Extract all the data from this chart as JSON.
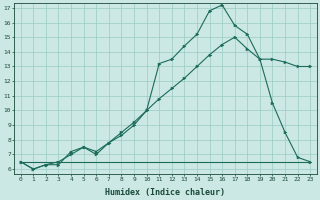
{
  "xlabel": "Humidex (Indice chaleur)",
  "bg_color": "#cce8e4",
  "grid_color": "#99ccc4",
  "line_color": "#1a6b5a",
  "xlim": [
    -0.5,
    23.5
  ],
  "ylim": [
    5.7,
    17.3
  ],
  "yticks": [
    6,
    7,
    8,
    9,
    10,
    11,
    12,
    13,
    14,
    15,
    16,
    17
  ],
  "xticks": [
    0,
    1,
    2,
    3,
    4,
    5,
    6,
    7,
    8,
    9,
    10,
    11,
    12,
    13,
    14,
    15,
    16,
    17,
    18,
    19,
    20,
    21,
    22,
    23
  ],
  "line1_x": [
    0,
    1,
    2,
    3,
    4,
    5,
    6,
    7,
    8,
    9,
    10,
    11,
    12,
    13,
    14,
    15,
    16,
    17,
    18,
    19,
    20,
    21,
    22,
    23
  ],
  "line1_y": [
    6.5,
    6.0,
    6.3,
    6.3,
    7.2,
    7.5,
    7.0,
    7.8,
    8.5,
    9.2,
    10.0,
    13.2,
    13.5,
    14.4,
    15.2,
    16.8,
    17.2,
    15.8,
    15.2,
    13.5,
    10.5,
    8.5,
    6.8,
    6.5
  ],
  "line2_x": [
    0,
    1,
    2,
    3,
    4,
    5,
    6,
    7,
    8,
    9,
    10,
    11,
    12,
    13,
    14,
    15,
    16,
    17,
    18,
    19,
    20,
    21,
    22,
    23
  ],
  "line2_y": [
    6.5,
    6.0,
    6.3,
    6.5,
    7.0,
    7.5,
    7.2,
    7.8,
    8.3,
    9.0,
    10.0,
    10.8,
    11.5,
    12.2,
    13.0,
    13.8,
    14.5,
    15.0,
    14.2,
    13.5,
    13.5,
    13.3,
    13.0,
    13.0
  ],
  "line3_x": [
    0,
    1,
    2,
    3,
    4,
    5,
    6,
    7,
    8,
    9,
    10,
    11,
    12,
    13,
    14,
    15,
    16,
    17,
    18,
    19,
    20,
    21,
    22,
    23
  ],
  "line3_y": [
    6.5,
    6.5,
    6.5,
    6.5,
    6.5,
    6.5,
    6.5,
    6.5,
    6.5,
    6.5,
    6.5,
    6.5,
    6.5,
    6.5,
    6.5,
    6.5,
    6.5,
    6.5,
    6.5,
    6.5,
    6.5,
    6.5,
    6.5,
    6.5
  ],
  "tick_fontsize": 4.5,
  "xlabel_fontsize": 6.0
}
